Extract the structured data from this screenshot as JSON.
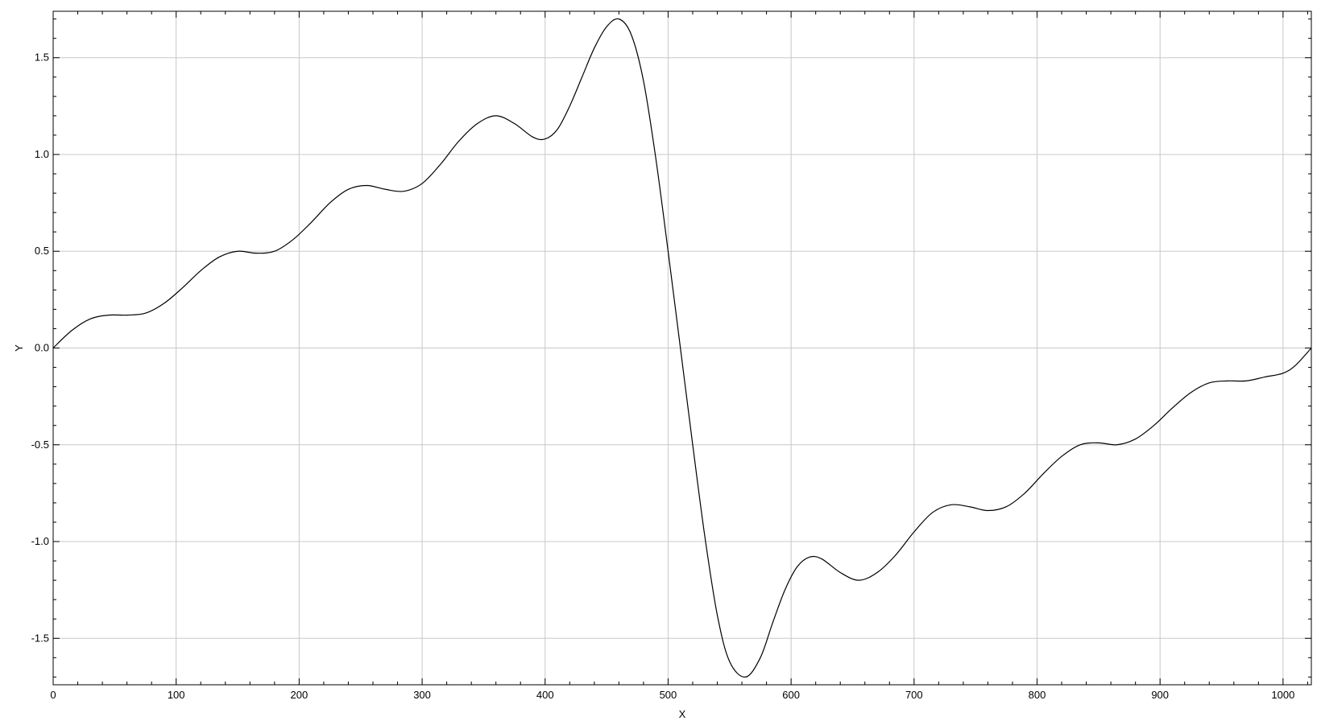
{
  "chart_data": {
    "type": "line",
    "title": "",
    "xlabel": "X",
    "ylabel": "Y",
    "xlim": [
      0,
      1023
    ],
    "ylim": [
      -1.74,
      1.74
    ],
    "grid": true,
    "legend": "none",
    "colors": {
      "line": "#000000",
      "grid": "#c8c8c8",
      "frame": "#000000",
      "background": "#ffffff"
    },
    "x_ticks": [
      0,
      100,
      200,
      300,
      400,
      500,
      600,
      700,
      800,
      900,
      1000
    ],
    "x_tick_labels": [
      "0",
      "100",
      "200",
      "300",
      "400",
      "500",
      "600",
      "700",
      "800",
      "900",
      "1000"
    ],
    "y_ticks": [
      1.5,
      1.0,
      0.5,
      0.0,
      -0.5,
      -1.0,
      -1.5
    ],
    "y_tick_labels": [
      "1.5",
      "1.0",
      "0.5",
      "0.0",
      "-0.5",
      "-1.0",
      "-1.5"
    ],
    "series": [
      {
        "x": [
          0,
          15,
          30,
          45,
          60,
          75,
          90,
          105,
          120,
          135,
          150,
          165,
          180,
          195,
          210,
          225,
          240,
          255,
          270,
          285,
          300,
          315,
          330,
          345,
          360,
          375,
          390,
          400,
          410,
          420,
          430,
          440,
          450,
          460,
          470,
          480,
          490,
          500,
          510,
          520,
          530,
          540,
          550,
          563,
          575,
          585,
          595,
          605,
          615,
          625,
          640,
          655,
          670,
          685,
          700,
          715,
          730,
          745,
          760,
          775,
          790,
          805,
          820,
          835,
          850,
          865,
          880,
          895,
          910,
          925,
          940,
          955,
          970,
          985,
          1000,
          1010,
          1023
        ],
        "y": [
          0.0,
          0.09,
          0.15,
          0.17,
          0.17,
          0.18,
          0.23,
          0.31,
          0.4,
          0.47,
          0.5,
          0.49,
          0.5,
          0.56,
          0.65,
          0.75,
          0.82,
          0.84,
          0.82,
          0.81,
          0.85,
          0.95,
          1.07,
          1.16,
          1.2,
          1.16,
          1.09,
          1.08,
          1.13,
          1.25,
          1.4,
          1.55,
          1.66,
          1.7,
          1.62,
          1.38,
          0.98,
          0.5,
          0.0,
          -0.5,
          -0.98,
          -1.38,
          -1.62,
          -1.7,
          -1.6,
          -1.42,
          -1.25,
          -1.13,
          -1.08,
          -1.09,
          -1.16,
          -1.2,
          -1.16,
          -1.07,
          -0.95,
          -0.85,
          -0.81,
          -0.82,
          -0.84,
          -0.82,
          -0.75,
          -0.65,
          -0.56,
          -0.5,
          -0.49,
          -0.5,
          -0.47,
          -0.4,
          -0.31,
          -0.23,
          -0.18,
          -0.17,
          -0.17,
          -0.15,
          -0.13,
          -0.09,
          0.0
        ]
      }
    ]
  }
}
